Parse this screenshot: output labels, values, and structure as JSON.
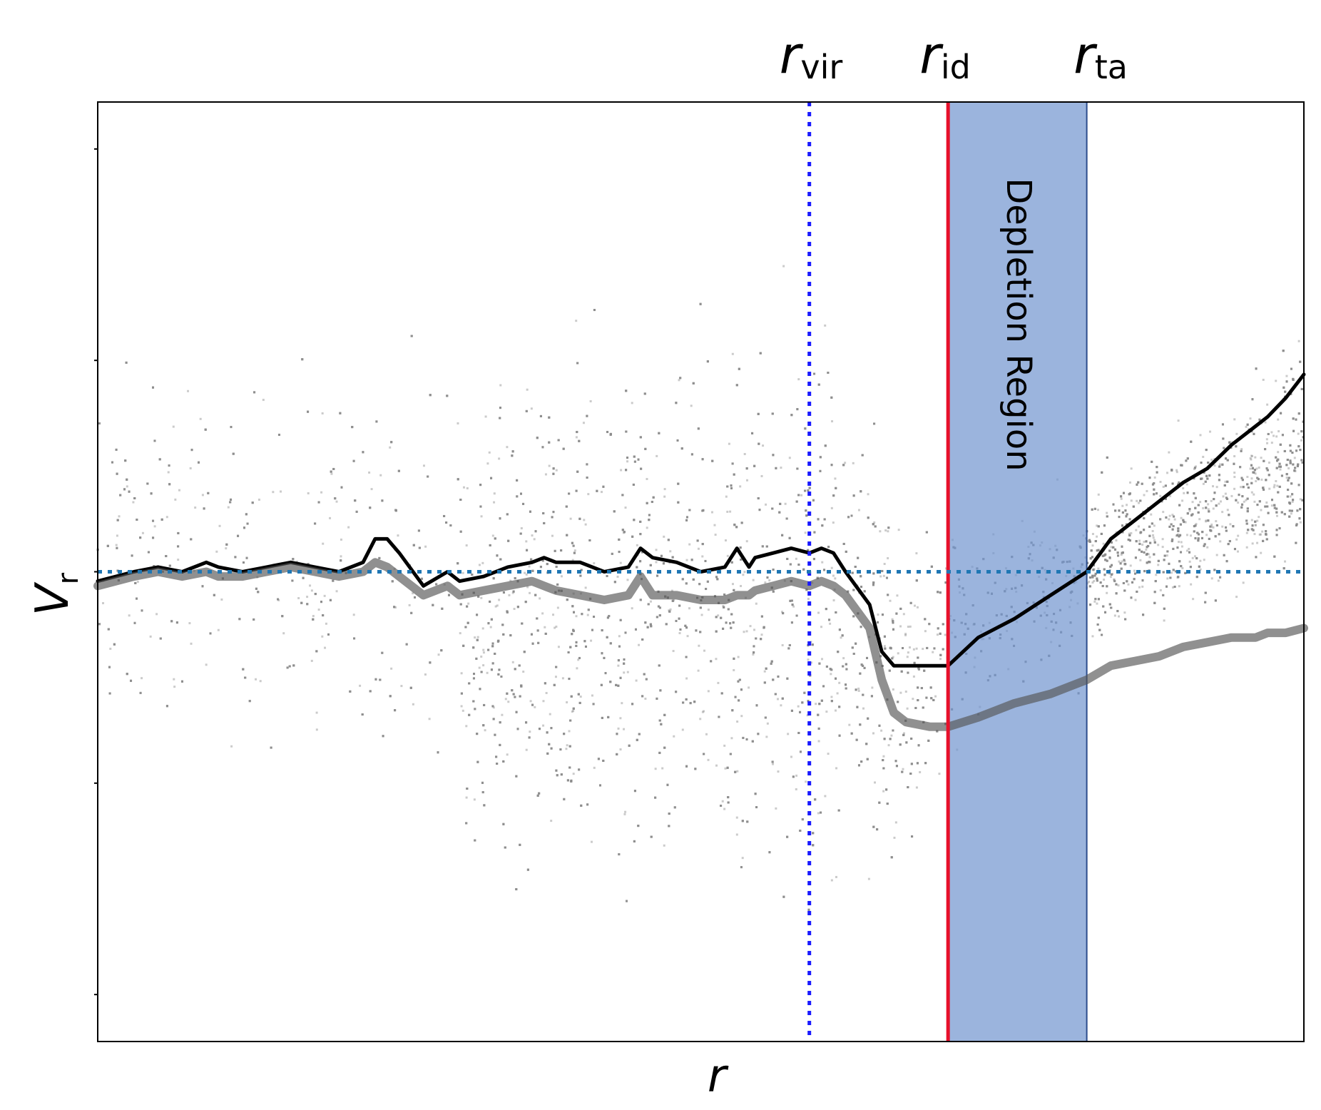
{
  "chart_data": {
    "type": "scatter",
    "title": "",
    "xlabel": "r",
    "ylabel": "V",
    "ylabel_sub": "r",
    "xlim": [
      0,
      1
    ],
    "ylim": [
      -1,
      1
    ],
    "grid": false,
    "x_ticks_labeled": false,
    "y_ticks_labeled": false,
    "reference_lines": [
      {
        "name": "r_vir",
        "label_main": "r",
        "label_sub": "vir",
        "orientation": "vertical",
        "x": 0.59,
        "style": "dotted",
        "color": "#1a1aff"
      },
      {
        "name": "r_id",
        "label_main": "r",
        "label_sub": "id",
        "orientation": "vertical",
        "x": 0.705,
        "style": "solid",
        "color": "#e8102a"
      },
      {
        "name": "r_ta",
        "label_main": "r",
        "label_sub": "ta",
        "orientation": "vertical",
        "x": 0.82,
        "style": "none",
        "color": "#2b4c8c"
      },
      {
        "name": "zero",
        "orientation": "horizontal",
        "y": 0.0,
        "style": "dotted",
        "color": "#1f77b4"
      }
    ],
    "shaded_region": {
      "label": "Depletion Region",
      "x_start": 0.705,
      "x_end": 0.82,
      "color": "#7094cf",
      "edge": "#2b4c8c",
      "opacity": 0.7
    },
    "scatter_color": "#8c8c8c",
    "series": [
      {
        "style": "thin-black",
        "color": "#000000",
        "x": [
          0.0,
          0.03,
          0.05,
          0.07,
          0.09,
          0.1,
          0.12,
          0.14,
          0.16,
          0.18,
          0.2,
          0.22,
          0.23,
          0.24,
          0.25,
          0.27,
          0.29,
          0.3,
          0.32,
          0.34,
          0.36,
          0.37,
          0.38,
          0.4,
          0.42,
          0.44,
          0.45,
          0.46,
          0.48,
          0.5,
          0.52,
          0.53,
          0.54,
          0.545,
          0.56,
          0.575,
          0.59,
          0.6,
          0.61,
          0.62,
          0.64,
          0.65,
          0.66,
          0.67,
          0.69,
          0.705,
          0.73,
          0.76,
          0.79,
          0.82,
          0.84,
          0.86,
          0.88,
          0.9,
          0.92,
          0.94,
          0.96,
          0.97,
          0.985,
          1.0
        ],
        "y": [
          -0.02,
          0.0,
          0.01,
          0.0,
          0.02,
          0.01,
          0.0,
          0.01,
          0.02,
          0.01,
          0.0,
          0.02,
          0.07,
          0.07,
          0.04,
          -0.03,
          0.0,
          -0.02,
          -0.01,
          0.01,
          0.02,
          0.03,
          0.02,
          0.02,
          0.0,
          0.01,
          0.05,
          0.03,
          0.02,
          0.0,
          0.01,
          0.05,
          0.01,
          0.03,
          0.04,
          0.05,
          0.04,
          0.05,
          0.04,
          0.0,
          -0.07,
          -0.17,
          -0.2,
          -0.2,
          -0.2,
          -0.2,
          -0.14,
          -0.1,
          -0.05,
          0.0,
          0.07,
          0.11,
          0.15,
          0.19,
          0.22,
          0.27,
          0.31,
          0.33,
          0.37,
          0.42
        ]
      },
      {
        "style": "thick-gray",
        "color": "#555555",
        "x": [
          0.0,
          0.03,
          0.05,
          0.07,
          0.09,
          0.1,
          0.12,
          0.14,
          0.16,
          0.18,
          0.2,
          0.22,
          0.23,
          0.24,
          0.25,
          0.27,
          0.29,
          0.3,
          0.32,
          0.34,
          0.36,
          0.37,
          0.38,
          0.4,
          0.42,
          0.44,
          0.45,
          0.46,
          0.48,
          0.5,
          0.52,
          0.53,
          0.54,
          0.545,
          0.56,
          0.575,
          0.59,
          0.6,
          0.61,
          0.62,
          0.64,
          0.65,
          0.66,
          0.67,
          0.69,
          0.705,
          0.73,
          0.76,
          0.79,
          0.82,
          0.84,
          0.86,
          0.88,
          0.9,
          0.92,
          0.94,
          0.96,
          0.97,
          0.985,
          1.0
        ],
        "y": [
          -0.03,
          -0.01,
          0.0,
          -0.01,
          0.0,
          -0.01,
          -0.01,
          0.0,
          0.01,
          0.0,
          -0.01,
          0.0,
          0.02,
          0.01,
          -0.01,
          -0.05,
          -0.03,
          -0.05,
          -0.04,
          -0.03,
          -0.02,
          -0.03,
          -0.04,
          -0.05,
          -0.06,
          -0.05,
          -0.01,
          -0.05,
          -0.05,
          -0.06,
          -0.06,
          -0.05,
          -0.05,
          -0.04,
          -0.03,
          -0.02,
          -0.03,
          -0.02,
          -0.03,
          -0.05,
          -0.12,
          -0.23,
          -0.3,
          -0.32,
          -0.33,
          -0.33,
          -0.31,
          -0.28,
          -0.26,
          -0.23,
          -0.2,
          -0.19,
          -0.18,
          -0.16,
          -0.15,
          -0.14,
          -0.14,
          -0.13,
          -0.13,
          -0.12
        ]
      }
    ]
  }
}
